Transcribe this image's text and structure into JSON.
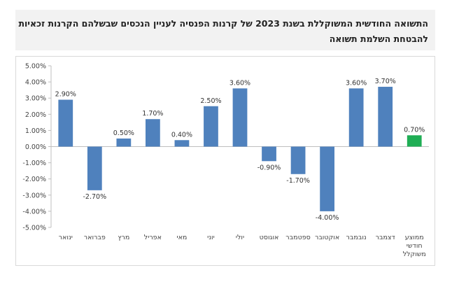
{
  "chart_data": {
    "type": "bar",
    "title_lines": [
      "התשואה החודשית המשוקללת בשנת 2023 של קרנות הפנסיה לעניין הנכסים שבשלהם הקרנות זכאיות",
      "להבטחת השלמת תשואה"
    ],
    "categories": [
      [
        "ינואר"
      ],
      [
        "פברואר"
      ],
      [
        "מרץ"
      ],
      [
        "אפריל"
      ],
      [
        "מאי"
      ],
      [
        "יוני"
      ],
      [
        "יולי"
      ],
      [
        "אוגוסט"
      ],
      [
        "ספטמבר"
      ],
      [
        "אוקטובר"
      ],
      [
        "נובמבר"
      ],
      [
        "דצמבר"
      ],
      [
        "ממוצע",
        "חודשי",
        "משוקלל"
      ]
    ],
    "values": [
      2.9,
      -2.7,
      0.5,
      1.7,
      0.4,
      2.5,
      3.6,
      -0.9,
      -1.7,
      -4.0,
      3.6,
      3.7,
      0.7
    ],
    "data_labels": [
      "2.90%",
      "-2.70%",
      "0.50%",
      "1.70%",
      "0.40%",
      "2.50%",
      "3.60%",
      "-0.90%",
      "-1.70%",
      "-4.00%",
      "3.60%",
      "3.70%",
      "0.70%"
    ],
    "ylim": [
      -5,
      5
    ],
    "yticks": [
      5,
      4,
      3,
      2,
      1,
      0,
      -1,
      -2,
      -3,
      -4,
      -5
    ],
    "ytick_labels": [
      "5.00%",
      "4.00%",
      "3.00%",
      "2.00%",
      "1.00%",
      "0.00%",
      "-1.00%",
      "-2.00%",
      "-3.00%",
      "-4.00%",
      "-5.00%"
    ],
    "grid": false,
    "colors": {
      "bar": "#4f81bd",
      "highlight": "#1fae55",
      "axis": "#bfbfbf"
    },
    "highlight_index": 12
  }
}
